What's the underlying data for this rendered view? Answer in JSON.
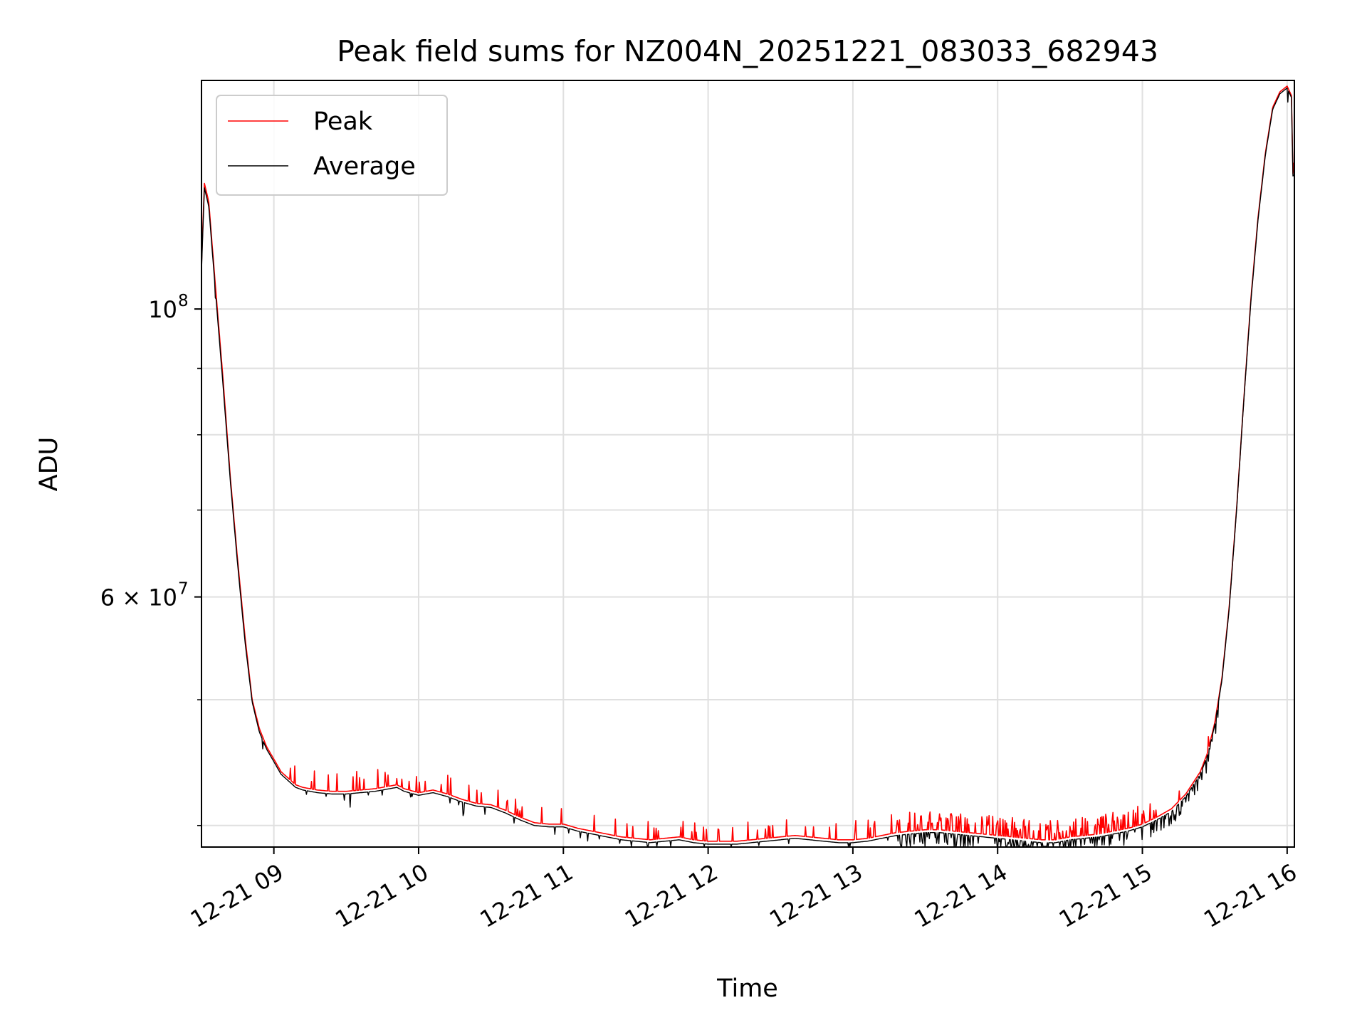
{
  "chart_data": {
    "type": "line",
    "title": "Peak field sums for NZ004N_20251221_083033_682943",
    "xlabel": "Time",
    "ylabel": "ADU",
    "yscale": "log",
    "grid": true,
    "legend_position": "top-left",
    "x_unit": "hours since 12-21 00:00",
    "xlim": [
      8.5,
      16.05
    ],
    "ylim": [
      38500000,
      150000000
    ],
    "x_ticks": [
      {
        "value": 9,
        "label": "12-21 09"
      },
      {
        "value": 10,
        "label": "12-21 10"
      },
      {
        "value": 11,
        "label": "12-21 11"
      },
      {
        "value": 12,
        "label": "12-21 12"
      },
      {
        "value": 13,
        "label": "12-21 13"
      },
      {
        "value": 14,
        "label": "12-21 14"
      },
      {
        "value": 15,
        "label": "12-21 15"
      },
      {
        "value": 16,
        "label": "12-21 16"
      }
    ],
    "y_major_ticks": [
      {
        "value": 60000000,
        "label_mantissa": "6 × 10",
        "label_exp": "7"
      },
      {
        "value": 100000000,
        "label_mantissa": "10",
        "label_exp": "8"
      }
    ],
    "y_minor_ticks": [
      40000000,
      50000000,
      70000000,
      80000000,
      90000000
    ],
    "series": [
      {
        "name": "Peak",
        "color": "#ff0000",
        "x": [
          8.5,
          8.52,
          8.55,
          8.6,
          8.65,
          8.7,
          8.75,
          8.8,
          8.85,
          8.9,
          8.95,
          9.0,
          9.05,
          9.1,
          9.15,
          9.2,
          9.3,
          9.4,
          9.5,
          9.6,
          9.7,
          9.8,
          9.85,
          9.9,
          10.0,
          10.1,
          10.2,
          10.3,
          10.4,
          10.5,
          10.6,
          10.7,
          10.8,
          10.9,
          11.0,
          11.1,
          11.2,
          11.3,
          11.4,
          11.5,
          11.6,
          11.7,
          11.8,
          11.9,
          12.0,
          12.1,
          12.2,
          12.3,
          12.4,
          12.5,
          12.6,
          12.7,
          12.8,
          12.9,
          13.0,
          13.1,
          13.2,
          13.3,
          13.4,
          13.5,
          13.6,
          13.7,
          13.8,
          13.9,
          14.0,
          14.1,
          14.2,
          14.3,
          14.4,
          14.5,
          14.6,
          14.7,
          14.8,
          14.9,
          15.0,
          15.1,
          15.2,
          15.3,
          15.4,
          15.45,
          15.5,
          15.55,
          15.6,
          15.65,
          15.7,
          15.75,
          15.8,
          15.85,
          15.9,
          15.95,
          16.0,
          16.03,
          16.04,
          16.05
        ],
        "values": [
          108000000,
          125000000,
          121000000,
          103000000,
          88000000,
          74000000,
          64000000,
          56000000,
          50000000,
          47500000,
          46000000,
          45000000,
          44000000,
          43500000,
          43000000,
          42800000,
          42600000,
          42500000,
          42500000,
          42600000,
          42700000,
          42900000,
          43000000,
          42700000,
          42400000,
          42600000,
          42300000,
          41900000,
          41600000,
          41500000,
          41100000,
          40600000,
          40200000,
          40100000,
          40100000,
          39800000,
          39600000,
          39400000,
          39200000,
          39100000,
          39000000,
          39100000,
          39200000,
          39000000,
          38900000,
          38900000,
          38900000,
          39000000,
          39100000,
          39200000,
          39300000,
          39200000,
          39100000,
          39000000,
          39000000,
          39100000,
          39300000,
          39500000,
          39600000,
          39700000,
          39700000,
          39600000,
          39500000,
          39400000,
          39300000,
          39200000,
          39100000,
          39000000,
          39000000,
          39200000,
          39300000,
          39400000,
          39600000,
          39800000,
          40100000,
          40600000,
          41200000,
          42300000,
          44000000,
          45500000,
          48000000,
          52000000,
          59000000,
          70000000,
          85000000,
          102000000,
          118000000,
          132000000,
          143000000,
          147000000,
          148500000,
          146000000,
          127000000,
          127500000
        ]
      },
      {
        "name": "Average",
        "color": "#000000",
        "x": [
          8.5,
          8.52,
          8.55,
          8.6,
          8.65,
          8.7,
          8.75,
          8.8,
          8.85,
          8.9,
          8.95,
          9.0,
          9.05,
          9.1,
          9.15,
          9.2,
          9.3,
          9.4,
          9.5,
          9.6,
          9.7,
          9.8,
          9.85,
          9.9,
          10.0,
          10.1,
          10.2,
          10.3,
          10.4,
          10.5,
          10.6,
          10.7,
          10.8,
          10.9,
          11.0,
          11.1,
          11.2,
          11.3,
          11.4,
          11.5,
          11.6,
          11.7,
          11.8,
          11.9,
          12.0,
          12.1,
          12.2,
          12.3,
          12.4,
          12.5,
          12.6,
          12.7,
          12.8,
          12.9,
          13.0,
          13.1,
          13.2,
          13.3,
          13.4,
          13.5,
          13.6,
          13.7,
          13.8,
          13.9,
          14.0,
          14.1,
          14.2,
          14.3,
          14.4,
          14.5,
          14.6,
          14.7,
          14.8,
          14.9,
          15.0,
          15.1,
          15.2,
          15.3,
          15.4,
          15.45,
          15.5,
          15.55,
          15.6,
          15.65,
          15.7,
          15.75,
          15.8,
          15.85,
          15.9,
          15.95,
          16.0,
          16.03,
          16.04,
          16.05
        ],
        "values": [
          107000000,
          124000000,
          120000000,
          102000000,
          87000000,
          73500000,
          63500000,
          55500000,
          49800000,
          47200000,
          45800000,
          44800000,
          43800000,
          43300000,
          42800000,
          42600000,
          42400000,
          42300000,
          42300000,
          42400000,
          42500000,
          42700000,
          42800000,
          42500000,
          42200000,
          42400000,
          42100000,
          41700000,
          41400000,
          41300000,
          40900000,
          40400000,
          40000000,
          39900000,
          39900000,
          39600000,
          39400000,
          39200000,
          39000000,
          38900000,
          38800000,
          38900000,
          39000000,
          38800000,
          38700000,
          38700000,
          38700000,
          38800000,
          38900000,
          39000000,
          39100000,
          39000000,
          38900000,
          38800000,
          38800000,
          38900000,
          39100000,
          39300000,
          39400000,
          39500000,
          39500000,
          39400000,
          39300000,
          39200000,
          39100000,
          39000000,
          38900000,
          38800000,
          38800000,
          39000000,
          39100000,
          39200000,
          39400000,
          39600000,
          39900000,
          40400000,
          41000000,
          42100000,
          43800000,
          45300000,
          47800000,
          51800000,
          58800000,
          69800000,
          84800000,
          101500000,
          117500000,
          131500000,
          142500000,
          146500000,
          148000000,
          145500000,
          126500000,
          127000000
        ]
      }
    ]
  }
}
